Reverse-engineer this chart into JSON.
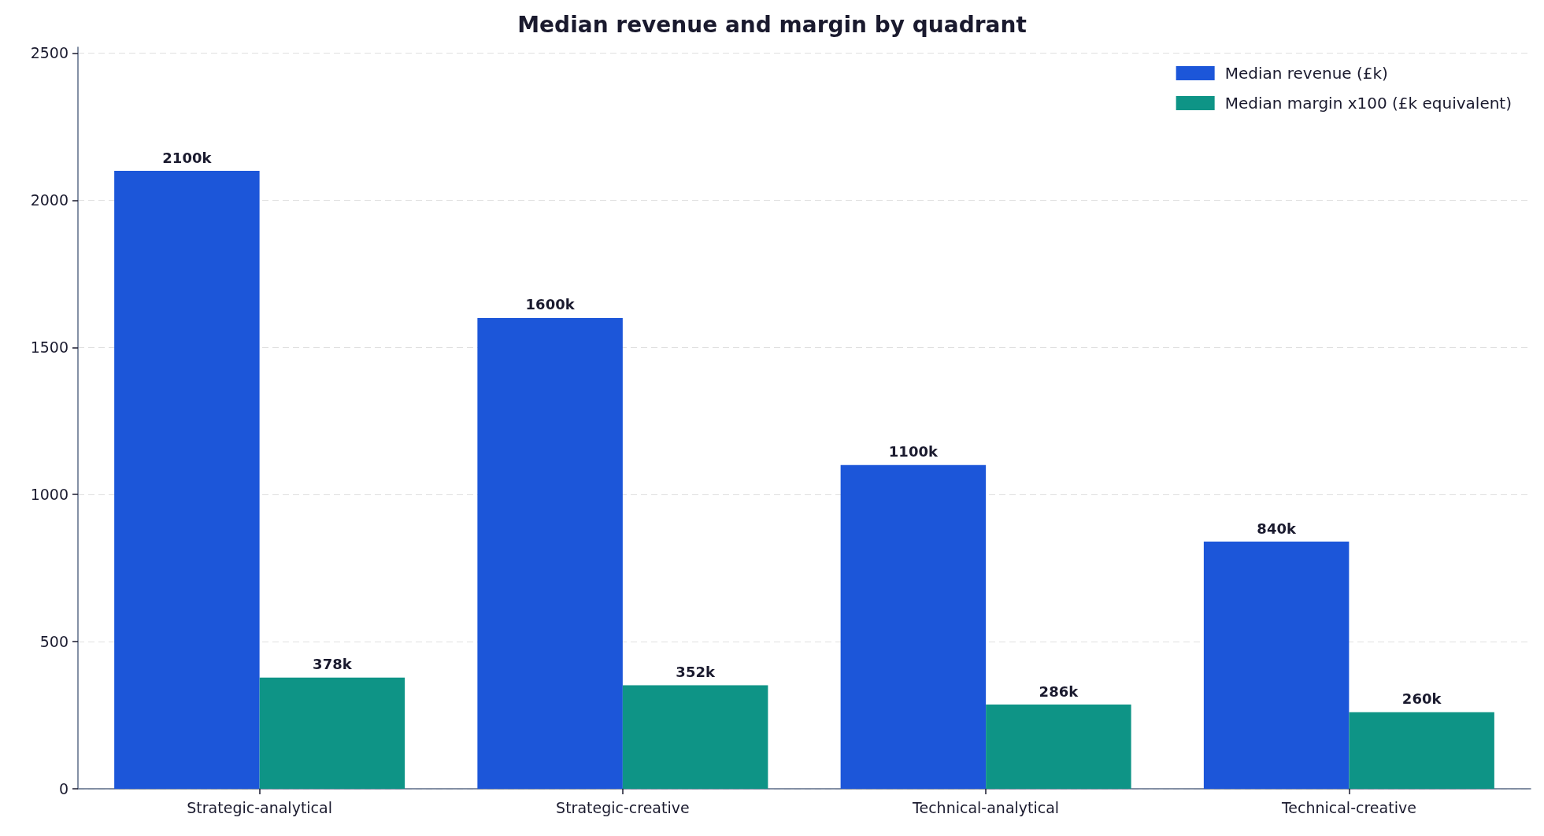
{
  "chart_data": {
    "type": "bar",
    "title": "Median revenue and margin by quadrant",
    "categories": [
      "Strategic-analytical",
      "Strategic-creative",
      "Technical-analytical",
      "Technical-creative"
    ],
    "series": [
      {
        "name": "Median revenue (£k)",
        "color": "#1c56d9",
        "values": [
          2100,
          1600,
          1100,
          840
        ],
        "value_labels": [
          "2100k",
          "1600k",
          "1100k",
          "840k"
        ]
      },
      {
        "name": "Median margin x100 (£k equivalent)",
        "color": "#0e9486",
        "values": [
          378,
          352,
          286,
          260
        ],
        "value_labels": [
          "378k",
          "352k",
          "286k",
          "260k"
        ]
      }
    ],
    "ylim": [
      0,
      2520
    ],
    "yticks": [
      0,
      500,
      1000,
      1500,
      2000,
      2500
    ],
    "grid": "y",
    "legend": "top right"
  }
}
